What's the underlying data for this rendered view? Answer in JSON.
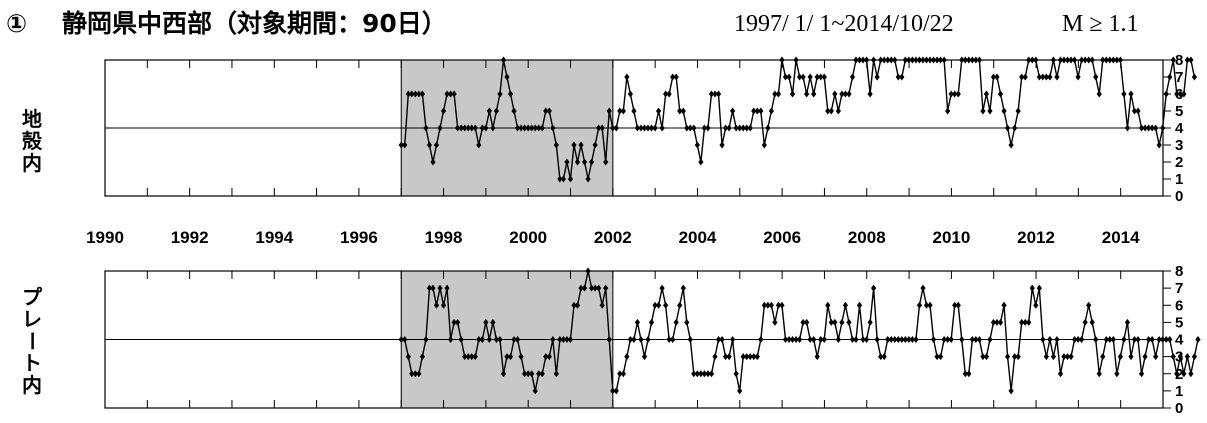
{
  "header": {
    "circle_number": "①",
    "title": "静岡県中西部（対象期間：90日）",
    "date_range": "1997/ 1/ 1~2014/10/22",
    "magnitude": "M ≥ 1.1"
  },
  "colors": {
    "shade": "#c8c8c8",
    "line": "#000000"
  },
  "chart_data": [
    {
      "type": "line",
      "ylabel": "地殻内",
      "xlim": [
        1990,
        2015
      ],
      "ylim": [
        0,
        8
      ],
      "x_ticks": [
        1990,
        1992,
        1994,
        1996,
        1998,
        2000,
        2002,
        2004,
        2006,
        2008,
        2010,
        2012,
        2014
      ],
      "y_ticks": [
        0,
        1,
        2,
        3,
        4,
        5,
        6,
        7,
        8
      ],
      "reference_y": 4,
      "shaded_period": [
        1997.0,
        2002.0
      ],
      "series": [
        {
          "x_start": 1997.0,
          "x_step": 0.0833,
          "values": [
            3,
            3,
            6,
            6,
            6,
            6,
            6,
            4,
            3,
            2,
            3,
            4,
            5,
            6,
            6,
            6,
            4,
            4,
            4,
            4,
            4,
            4,
            3,
            4,
            4,
            5,
            4,
            5,
            6,
            8,
            7,
            6,
            5,
            4,
            4,
            4,
            4,
            4,
            4,
            4,
            4,
            5,
            5,
            4,
            3,
            1,
            1,
            2,
            1,
            3,
            2,
            3,
            2,
            1,
            2,
            3,
            4,
            4,
            2,
            5,
            4,
            4,
            5,
            5,
            7,
            6,
            5,
            4,
            4,
            4,
            4,
            4,
            4,
            5,
            4,
            6,
            6,
            7,
            7,
            5,
            5,
            4,
            4,
            4,
            3,
            2,
            4,
            4,
            6,
            6,
            6,
            3,
            4,
            4,
            5,
            4,
            4,
            4,
            4,
            4,
            5,
            5,
            5,
            3,
            4,
            5,
            6,
            6,
            8,
            7,
            7,
            6,
            8,
            7,
            7,
            6,
            7,
            6,
            7,
            7,
            7,
            5,
            5,
            6,
            5,
            6,
            6,
            6,
            7,
            8,
            8,
            8,
            8,
            6,
            8,
            7,
            8,
            8,
            8,
            8,
            8,
            7,
            7,
            8,
            8,
            8,
            8,
            8,
            8,
            8,
            8,
            8,
            8,
            8,
            8,
            5,
            6,
            6,
            6,
            8,
            8,
            8,
            8,
            8,
            8,
            5,
            6,
            5,
            7,
            7,
            6,
            5,
            4,
            3,
            4,
            5,
            7,
            7,
            8,
            8,
            8,
            7,
            7,
            7,
            7,
            8,
            7,
            8,
            8,
            8,
            8,
            8,
            7,
            8,
            8,
            8,
            8,
            7,
            6,
            8,
            8,
            8,
            8,
            8,
            8,
            6,
            4,
            6,
            5,
            5,
            4,
            4,
            4,
            4,
            4,
            3,
            4,
            6,
            7,
            8,
            6,
            6,
            6,
            8,
            8,
            7
          ]
        }
      ]
    },
    {
      "type": "line",
      "ylabel": "プレート内",
      "xlim": [
        1990,
        2015
      ],
      "ylim": [
        0,
        8
      ],
      "x_ticks": [
        1990,
        1992,
        1994,
        1996,
        1998,
        2000,
        2002,
        2004,
        2006,
        2008,
        2010,
        2012,
        2014
      ],
      "y_ticks": [
        0,
        1,
        2,
        3,
        4,
        5,
        6,
        7,
        8
      ],
      "reference_y": 4,
      "shaded_period": [
        1997.0,
        2002.0
      ],
      "series": [
        {
          "x_start": 1997.0,
          "x_step": 0.0833,
          "values": [
            4,
            4,
            3,
            2,
            2,
            2,
            3,
            4,
            7,
            7,
            6,
            7,
            6,
            7,
            4,
            5,
            5,
            4,
            3,
            3,
            3,
            3,
            4,
            4,
            5,
            4,
            5,
            4,
            4,
            2,
            3,
            3,
            4,
            4,
            3,
            2,
            2,
            2,
            1,
            2,
            2,
            3,
            3,
            4,
            2,
            4,
            4,
            4,
            4,
            6,
            6,
            7,
            7,
            8,
            7,
            7,
            7,
            6,
            7,
            4,
            1,
            1,
            2,
            2,
            3,
            4,
            4,
            5,
            4,
            3,
            4,
            5,
            6,
            6,
            7,
            6,
            4,
            4,
            5,
            6,
            7,
            5,
            4,
            2,
            2,
            2,
            2,
            2,
            2,
            3,
            4,
            4,
            3,
            3,
            4,
            2,
            1,
            3,
            3,
            3,
            3,
            3,
            4,
            6,
            6,
            6,
            5,
            6,
            6,
            4,
            4,
            4,
            4,
            4,
            5,
            5,
            4,
            4,
            3,
            4,
            4,
            6,
            5,
            5,
            4,
            5,
            6,
            5,
            4,
            4,
            6,
            4,
            4,
            5,
            7,
            4,
            3,
            3,
            4,
            4,
            4,
            4,
            4,
            4,
            4,
            4,
            4,
            6,
            7,
            6,
            6,
            4,
            3,
            3,
            4,
            4,
            4,
            6,
            6,
            4,
            2,
            2,
            4,
            4,
            4,
            3,
            3,
            4,
            5,
            5,
            5,
            6,
            3,
            1,
            3,
            3,
            5,
            5,
            5,
            7,
            6,
            7,
            4,
            3,
            4,
            3,
            4,
            2,
            3,
            3,
            3,
            4,
            4,
            4,
            5,
            6,
            5,
            4,
            2,
            3,
            4,
            4,
            4,
            2,
            3,
            4,
            5,
            3,
            4,
            4,
            2,
            3,
            4,
            4,
            3,
            4,
            4,
            4,
            4,
            3,
            2,
            3,
            2,
            3,
            2,
            3,
            4
          ]
        }
      ]
    }
  ]
}
